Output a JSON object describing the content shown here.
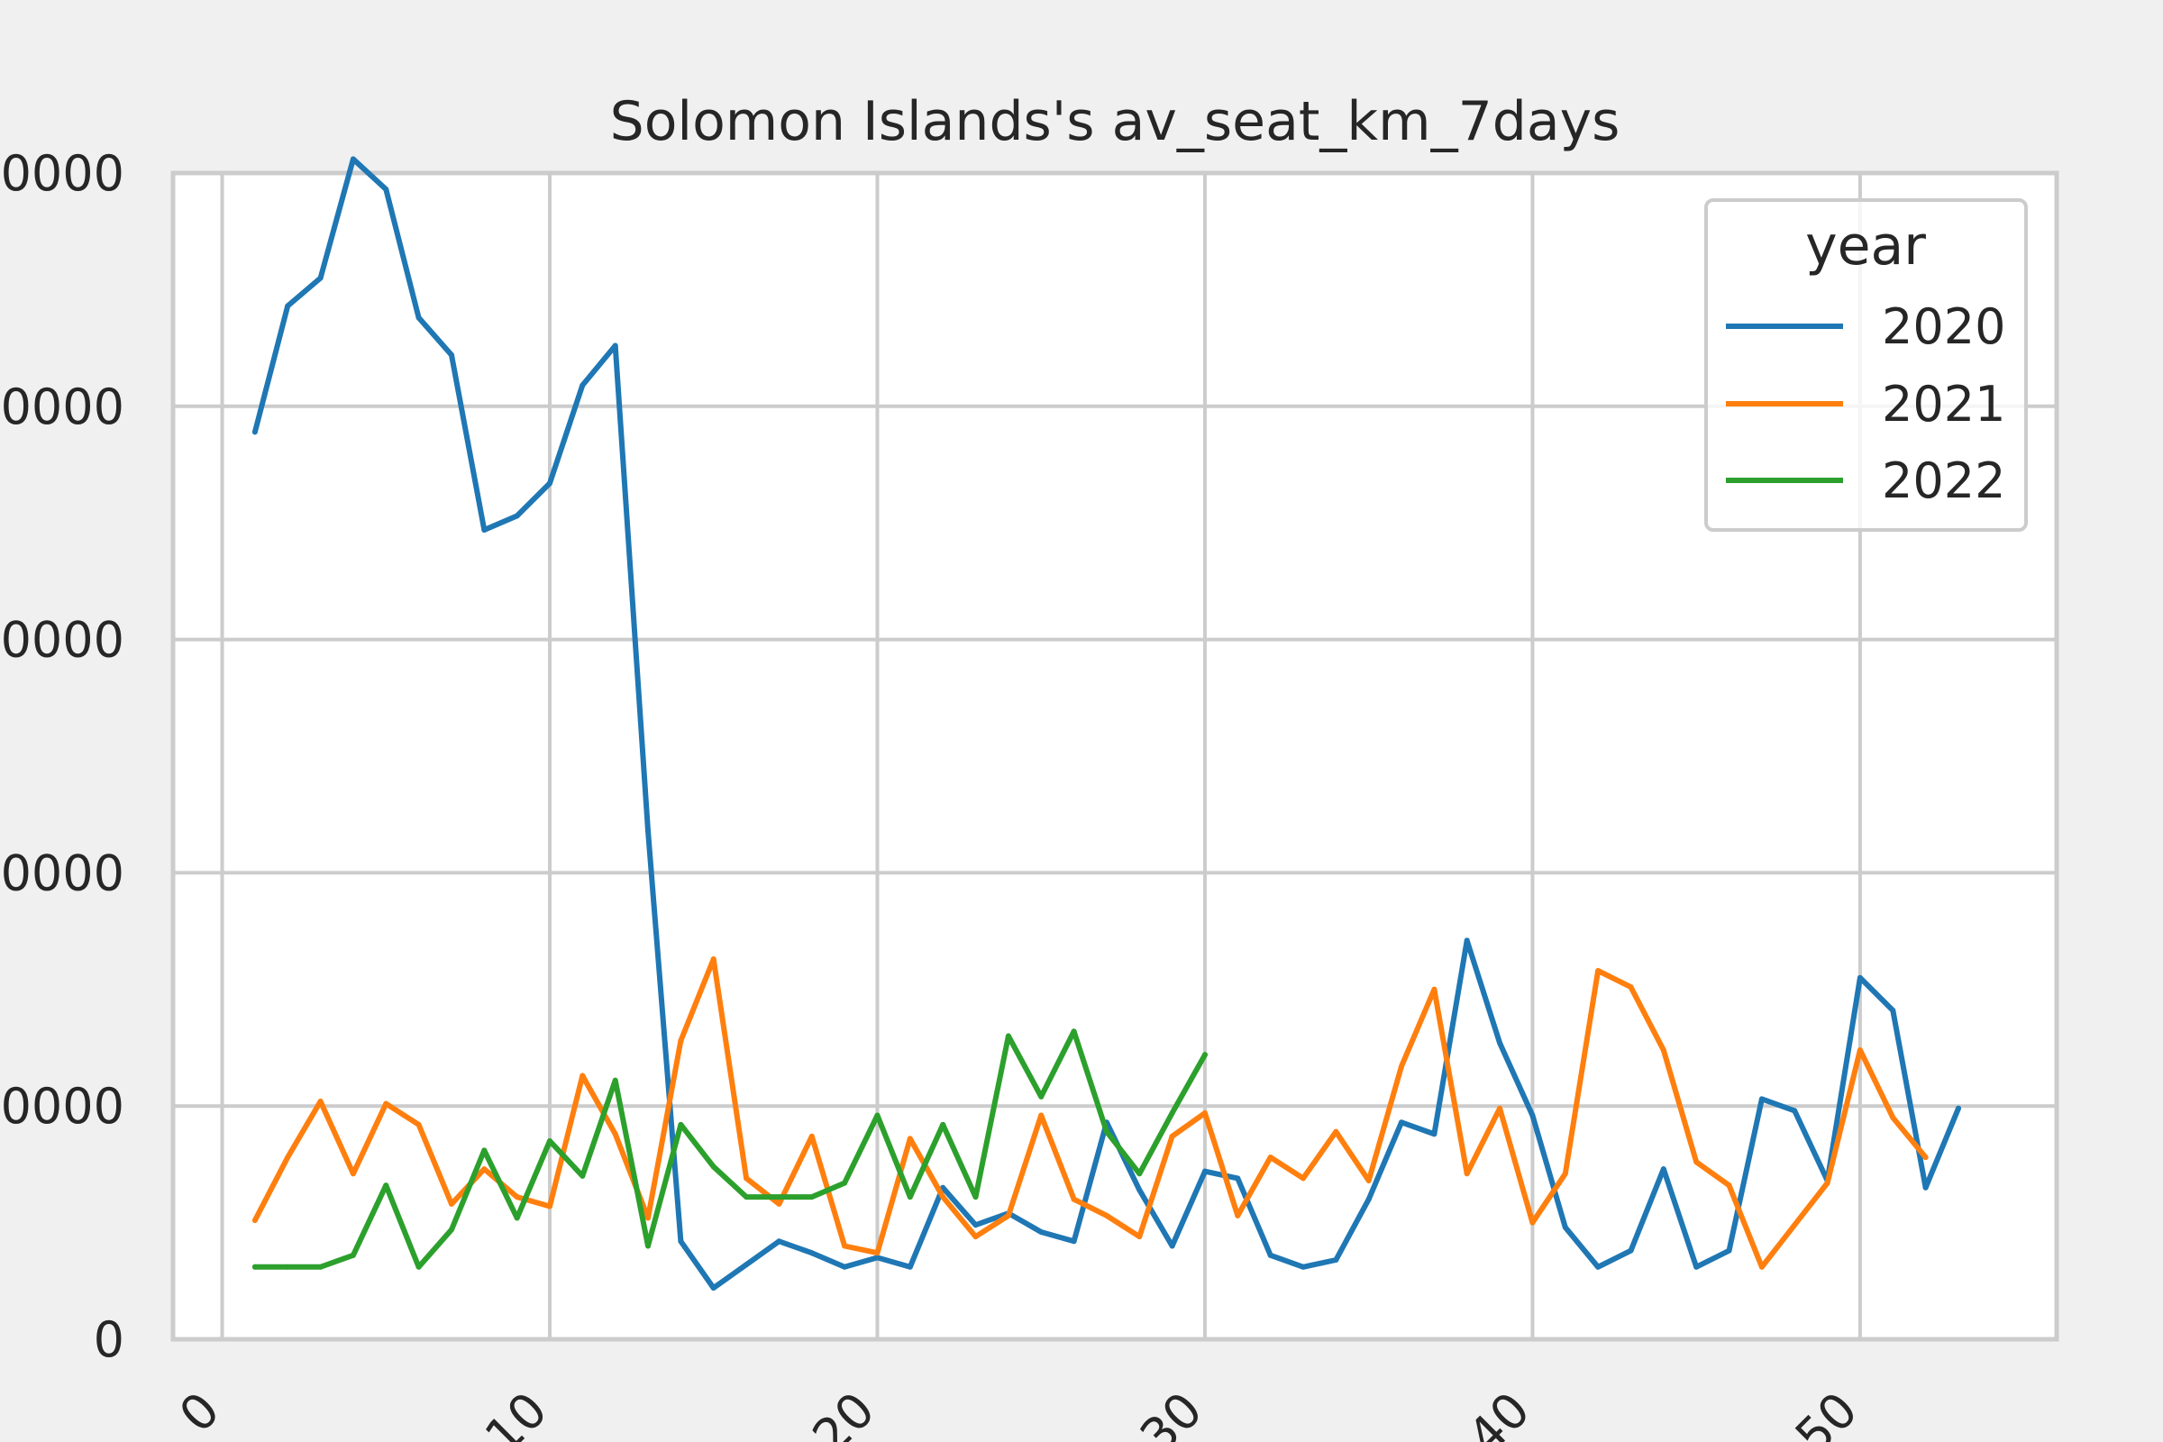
{
  "chart_data": {
    "type": "line",
    "title": "Solomon Islands's av_seat_km_7days",
    "xlabel": "",
    "ylabel": "",
    "xlim": [
      -1.5,
      56
    ],
    "ylim": [
      0,
      500000
    ],
    "xticks": [
      0,
      10,
      20,
      30,
      40,
      50
    ],
    "xtick_labels": [
      "0",
      "10",
      "20",
      "30",
      "40",
      "50"
    ],
    "yticks": [
      0,
      100000,
      200000,
      300000,
      400000,
      500000
    ],
    "ytick_labels": [
      "0",
      "0000",
      "0000",
      "0000",
      "0000",
      "0000"
    ],
    "grid": true,
    "legend": {
      "title": "year",
      "position": "top-right"
    },
    "series": [
      {
        "name": "2020",
        "color": "#1f77b4",
        "x": [
          1,
          2,
          3,
          4,
          5,
          6,
          7,
          8,
          9,
          10,
          11,
          12,
          13,
          14,
          15,
          16,
          17,
          18,
          19,
          20,
          21,
          22,
          23,
          24,
          25,
          26,
          27,
          28,
          29,
          30,
          31,
          32,
          33,
          34,
          35,
          36,
          37,
          38,
          39,
          40,
          41,
          42,
          43,
          44,
          45,
          46,
          47,
          48,
          49,
          50,
          51,
          52,
          53
        ],
        "y": [
          389000,
          443000,
          455000,
          506000,
          493000,
          438000,
          422000,
          347000,
          353000,
          367000,
          409000,
          426000,
          218000,
          42000,
          22000,
          32000,
          42000,
          37000,
          31000,
          35000,
          31000,
          65000,
          49000,
          54000,
          46000,
          42000,
          93000,
          64000,
          40000,
          72000,
          69000,
          36000,
          31000,
          34000,
          60000,
          93000,
          88000,
          171000,
          127000,
          96000,
          48000,
          31000,
          38000,
          73000,
          31000,
          38000,
          103000,
          98000,
          68000,
          155000,
          141000,
          65000,
          99000
        ]
      },
      {
        "name": "2021",
        "color": "#ff7f0e",
        "x": [
          1,
          2,
          3,
          4,
          5,
          6,
          7,
          8,
          9,
          10,
          11,
          12,
          13,
          14,
          15,
          16,
          17,
          18,
          19,
          20,
          21,
          22,
          23,
          24,
          25,
          26,
          27,
          28,
          29,
          30,
          31,
          32,
          33,
          34,
          35,
          36,
          37,
          38,
          39,
          40,
          41,
          42,
          43,
          44,
          45,
          46,
          47,
          48,
          49,
          50,
          51,
          52
        ],
        "y": [
          51000,
          78000,
          102000,
          71000,
          101000,
          92000,
          58000,
          73000,
          61000,
          57000,
          113000,
          88000,
          52000,
          128000,
          163000,
          69000,
          58000,
          87000,
          40000,
          37000,
          86000,
          61000,
          44000,
          53000,
          96000,
          60000,
          53000,
          44000,
          87000,
          97000,
          53000,
          78000,
          69000,
          89000,
          68000,
          117000,
          150000,
          71000,
          99000,
          50000,
          71000,
          158000,
          151000,
          124000,
          76000,
          66000,
          31000,
          49000,
          67000,
          124000,
          95000,
          78000
        ]
      },
      {
        "name": "2022",
        "color": "#2ca02c",
        "x": [
          1,
          2,
          3,
          4,
          5,
          6,
          7,
          8,
          9,
          10,
          11,
          12,
          13,
          14,
          15,
          16,
          17,
          18,
          19,
          20,
          21,
          22,
          23,
          24,
          25,
          26,
          27,
          28,
          29,
          30
        ],
        "y": [
          31000,
          31000,
          31000,
          36000,
          66000,
          31000,
          47000,
          81000,
          52000,
          85000,
          70000,
          111000,
          40000,
          92000,
          74000,
          61000,
          61000,
          61000,
          67000,
          96000,
          61000,
          92000,
          61000,
          130000,
          104000,
          132000,
          89000,
          71000,
          97000,
          122000
        ]
      }
    ]
  }
}
